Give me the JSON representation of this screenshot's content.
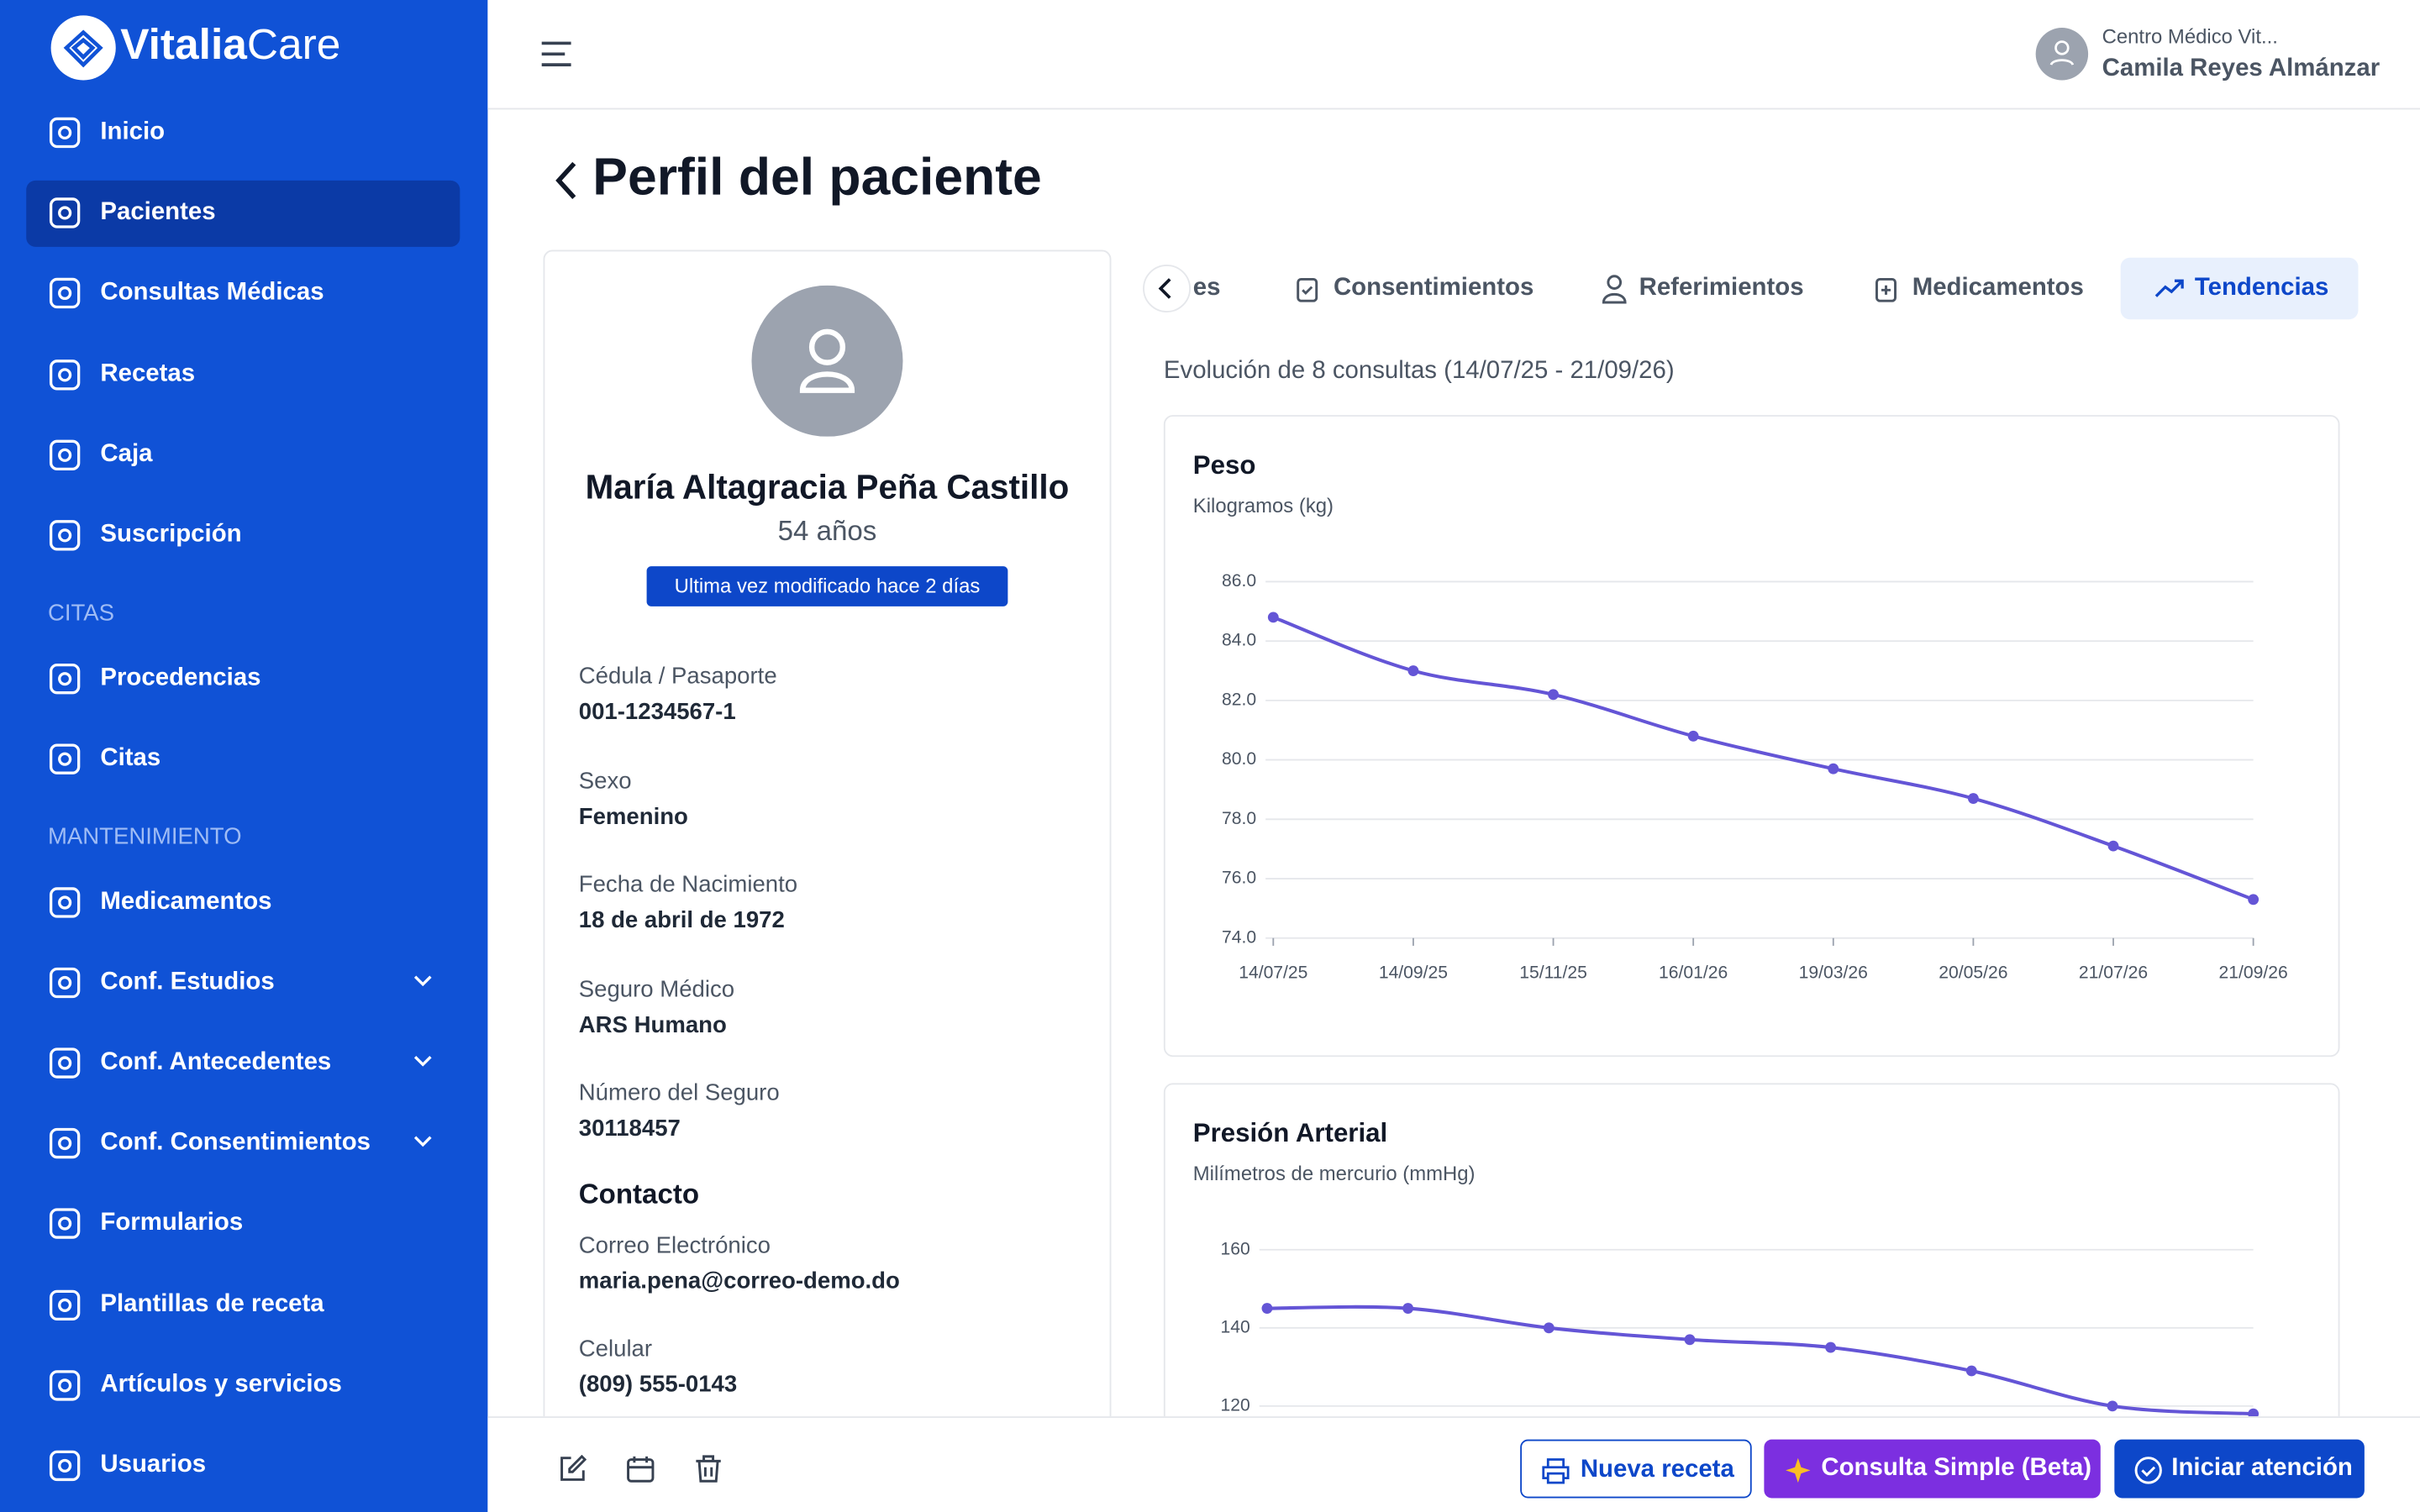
{
  "sidebar": {
    "logo": [
      "Vitalia",
      "Care"
    ],
    "items": [
      "Inicio",
      "Pacientes",
      "Consultas Médicas",
      "Recetas",
      "Caja",
      "Suscripción"
    ],
    "sections": [
      {
        "title": "CITAS",
        "items": [
          "Procedencias",
          "Citas"
        ]
      },
      {
        "title": "MANTENIMIENTO",
        "items": [
          "Medicamentos",
          "Conf. Estudios",
          "Conf. Antecedentes",
          "Conf. Consentimientos",
          "Formularios",
          "Plantillas de receta",
          "Artículos y servicios",
          "Usuarios"
        ]
      }
    ]
  },
  "header": {
    "clinic": "Centro Médico Vit...",
    "user": "Camila Reyes Almánzar"
  },
  "page": {
    "title": "Perfil del paciente"
  },
  "patient": {
    "name": "María Altagracia Peña Castillo",
    "age": "54 años",
    "badge": "Ultima vez modificado hace 2 días",
    "fields": [
      {
        "label": "Cédula / Pasaporte",
        "value": "001-1234567-1"
      },
      {
        "label": "Sexo",
        "value": "Femenino"
      },
      {
        "label": "Fecha de Nacimiento",
        "value": "18 de abril de 1972"
      },
      {
        "label": "Seguro Médico",
        "value": "ARS Humano"
      },
      {
        "label": "Número del Seguro",
        "value": "30118457"
      }
    ],
    "contact_title": "Contacto",
    "contact": [
      {
        "label": "Correo Electrónico",
        "value": "maria.pena@correo-demo.do"
      },
      {
        "label": "Celular",
        "value": "(809) 555-0143"
      }
    ]
  },
  "tabs": [
    "es",
    "Consentimientos",
    "Referimientos",
    "Medicamentos",
    "Tendencias"
  ],
  "trends": {
    "summary": "Evolución de 8 consultas (14/07/25 - 21/09/26)"
  },
  "chart_data": [
    {
      "type": "line",
      "title": "Peso",
      "subtitle": "Kilogramos (kg)",
      "categories": [
        "14/07/25",
        "14/09/25",
        "15/11/25",
        "16/01/26",
        "19/03/26",
        "20/05/26",
        "21/07/26",
        "21/09/26"
      ],
      "values": [
        84.8,
        83.0,
        82.2,
        80.8,
        79.7,
        78.7,
        77.1,
        75.3
      ],
      "color": "#6455d6",
      "ylim": [
        74,
        86
      ],
      "yticks": [
        {
          "value": 74,
          "label": "74.0"
        },
        {
          "value": 76,
          "label": "76.0"
        },
        {
          "value": 78,
          "label": "78.0"
        },
        {
          "value": 80,
          "label": "80.0"
        },
        {
          "value": 82,
          "label": "82.0"
        },
        {
          "value": 84,
          "label": "84.0"
        },
        {
          "value": 86,
          "label": "86.0"
        }
      ],
      "grid": true
    },
    {
      "type": "line",
      "title": "Presión Arterial",
      "subtitle": "Milímetros de mercurio (mmHg)",
      "values": [
        145,
        145,
        140,
        137,
        135,
        129,
        120,
        118
      ],
      "color": "#6455d6",
      "ylim": [
        100,
        160
      ],
      "yticks": [
        120,
        140,
        160
      ],
      "grid": true
    }
  ],
  "footer": {
    "buttons": [
      "Nueva receta",
      "Consulta Simple (Beta)",
      "Iniciar atención"
    ]
  }
}
